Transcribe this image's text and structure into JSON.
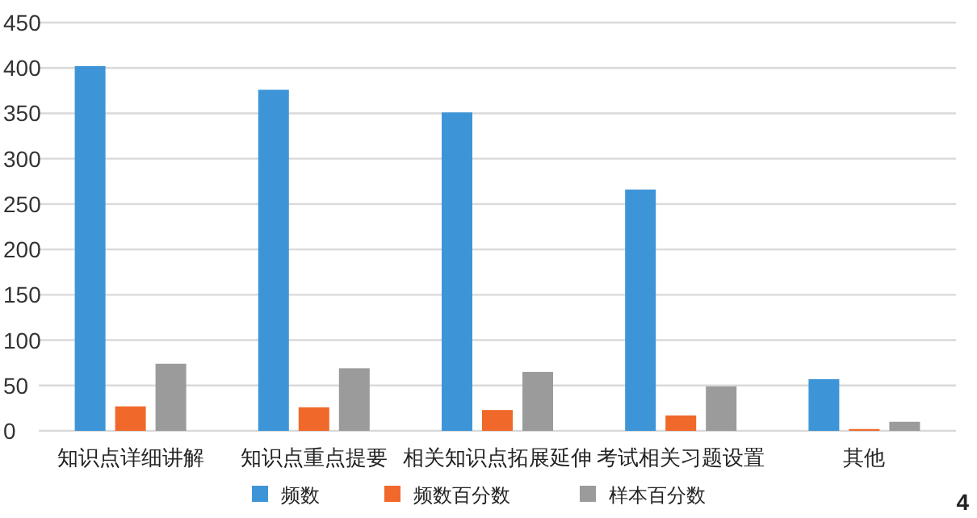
{
  "chart_data": {
    "type": "bar",
    "categories": [
      "知识点详细讲解",
      "知识点重点提要",
      "相关知识点拓展延伸",
      "考试相关习题设置",
      "其他"
    ],
    "series": [
      {
        "name": "频数",
        "color": "#3d95d8",
        "values": [
          402,
          376,
          351,
          266,
          57
        ]
      },
      {
        "name": "频数百分数",
        "color": "#f0692a",
        "values": [
          27,
          26,
          23,
          17,
          2
        ]
      },
      {
        "name": "样本百分数",
        "color": "#9b9b9b",
        "values": [
          74,
          69,
          65,
          49,
          10
        ]
      }
    ],
    "ylim": [
      0,
      450
    ],
    "yticks": [
      0,
      50,
      100,
      150,
      200,
      250,
      300,
      350,
      400,
      450
    ],
    "grid": "y",
    "legend": "bottom",
    "annotations": [
      "4"
    ]
  }
}
